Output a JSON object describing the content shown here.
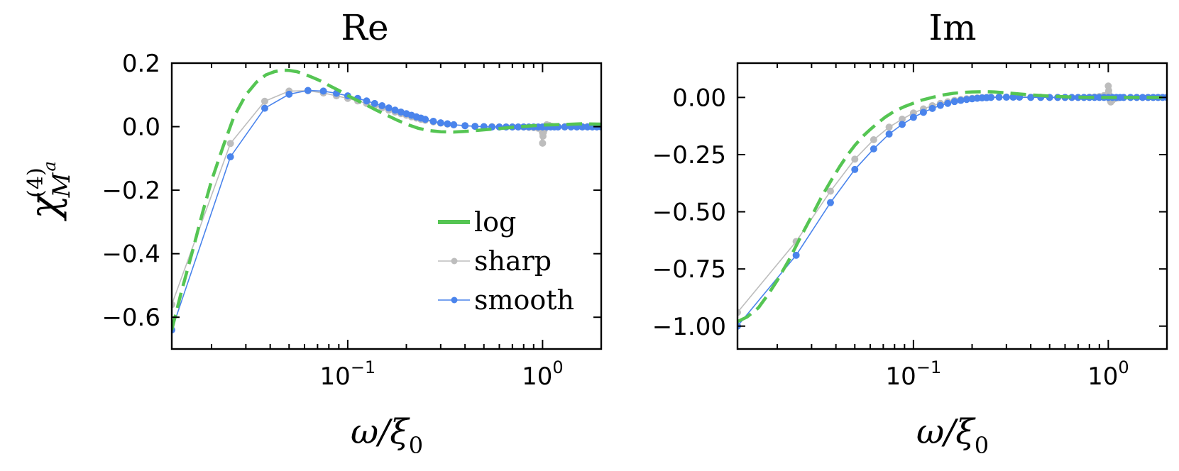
{
  "colors": {
    "log": "#55c553",
    "sharp": "#bdbdbd",
    "smooth": "#4a84ec"
  },
  "y_label": {
    "symbol": "χ",
    "superscript": "(4)",
    "subscript": "M",
    "sub_superscript": "a"
  },
  "chart_data": [
    {
      "type": "line",
      "title": "Re",
      "xlabel": "ω/ξ",
      "xlabel_sub": "0",
      "xscale": "log",
      "xlim": [
        0.0125,
        2.0
      ],
      "ylim": [
        -0.7,
        0.2
      ],
      "xticks": [
        {
          "base": "10",
          "exp": "−1",
          "value": 0.1
        },
        {
          "base": "10",
          "exp": "0",
          "value": 1.0
        }
      ],
      "yticks": [
        {
          "label": "0.2",
          "value": 0.2
        },
        {
          "label": "0.0",
          "value": 0.0
        },
        {
          "label": "−0.2",
          "value": -0.2
        },
        {
          "label": "−0.4",
          "value": -0.4
        },
        {
          "label": "−0.6",
          "value": -0.6
        }
      ],
      "legend": {
        "location": "lower-right",
        "entries": [
          "log",
          "sharp",
          "smooth"
        ]
      },
      "series": [
        {
          "name": "log",
          "style": "dashed",
          "x": [
            0.0125,
            0.014,
            0.016,
            0.018,
            0.02,
            0.023,
            0.026,
            0.03,
            0.034,
            0.038,
            0.042,
            0.046,
            0.05,
            0.055,
            0.06,
            0.066,
            0.072,
            0.08,
            0.09,
            0.1,
            0.11,
            0.125,
            0.14,
            0.16,
            0.18,
            0.2,
            0.23,
            0.26,
            0.3,
            0.35,
            0.4,
            0.5,
            0.6,
            0.7,
            0.85,
            1.0,
            1.3,
            1.6,
            2.0
          ],
          "y": [
            -0.64,
            -0.52,
            -0.39,
            -0.27,
            -0.17,
            -0.06,
            0.03,
            0.1,
            0.14,
            0.163,
            0.173,
            0.178,
            0.177,
            0.173,
            0.165,
            0.155,
            0.145,
            0.13,
            0.114,
            0.098,
            0.085,
            0.068,
            0.052,
            0.035,
            0.02,
            0.008,
            -0.005,
            -0.012,
            -0.016,
            -0.017,
            -0.015,
            -0.01,
            -0.006,
            -0.002,
            0.002,
            0.005,
            0.007,
            0.009,
            0.008
          ]
        },
        {
          "name": "sharp",
          "style": "markers",
          "x": [
            0.0125,
            0.025,
            0.0375,
            0.05,
            0.0625,
            0.075,
            0.0875,
            0.1,
            0.1125,
            0.125,
            0.1375,
            0.15,
            0.1625,
            0.175,
            0.1875,
            0.2,
            0.2125,
            0.225,
            0.2375,
            0.25,
            0.275,
            0.3,
            0.325,
            0.35,
            0.4,
            0.45,
            0.5,
            0.55,
            0.6,
            0.65,
            0.7,
            0.75,
            0.8,
            0.85,
            0.9,
            0.95,
            1.0,
            1.005,
            1.01,
            1.02,
            1.03,
            1.05,
            1.08,
            1.12,
            1.2,
            1.3,
            1.4,
            1.5,
            1.6,
            1.7,
            1.8,
            1.9,
            2.0
          ],
          "y": [
            -0.56,
            -0.053,
            0.08,
            0.112,
            0.113,
            0.106,
            0.097,
            0.089,
            0.081,
            0.073,
            0.066,
            0.059,
            0.052,
            0.046,
            0.041,
            0.036,
            0.031,
            0.027,
            0.023,
            0.02,
            0.015,
            0.011,
            0.008,
            0.006,
            0.003,
            0.001,
            0.0,
            0.0,
            -0.001,
            -0.001,
            -0.001,
            -0.001,
            -0.001,
            -0.002,
            -0.003,
            -0.005,
            -0.052,
            -0.03,
            -0.018,
            -0.01,
            0.0,
            0.006,
            0.004,
            0.001,
            0.0,
            0.0,
            0.0,
            0.0,
            0.0,
            0.0,
            0.0,
            0.0,
            0.0
          ]
        },
        {
          "name": "smooth",
          "style": "markers",
          "x": [
            0.0125,
            0.025,
            0.0375,
            0.05,
            0.0625,
            0.075,
            0.0875,
            0.1,
            0.1125,
            0.125,
            0.1375,
            0.15,
            0.1625,
            0.175,
            0.1875,
            0.2,
            0.2125,
            0.225,
            0.2375,
            0.25,
            0.275,
            0.3,
            0.325,
            0.35,
            0.4,
            0.45,
            0.5,
            0.55,
            0.6,
            0.65,
            0.7,
            0.75,
            0.8,
            0.85,
            0.9,
            0.95,
            1.0,
            1.05,
            1.1,
            1.15,
            1.2,
            1.3,
            1.4,
            1.5,
            1.6,
            1.7,
            1.8,
            1.9,
            2.0
          ],
          "y": [
            -0.64,
            -0.095,
            0.058,
            0.102,
            0.114,
            0.112,
            0.105,
            0.097,
            0.089,
            0.081,
            0.073,
            0.066,
            0.059,
            0.052,
            0.046,
            0.041,
            0.036,
            0.031,
            0.027,
            0.023,
            0.017,
            0.012,
            0.009,
            0.006,
            0.003,
            0.001,
            0.0,
            -0.001,
            -0.001,
            -0.001,
            -0.001,
            -0.001,
            -0.001,
            -0.001,
            -0.001,
            -0.001,
            -0.001,
            -0.001,
            -0.001,
            -0.001,
            -0.001,
            -0.001,
            -0.001,
            -0.001,
            -0.001,
            -0.001,
            -0.001,
            -0.001,
            -0.001
          ]
        }
      ]
    },
    {
      "type": "line",
      "title": "Im",
      "xlabel": "ω/ξ",
      "xlabel_sub": "0",
      "xscale": "log",
      "xlim": [
        0.0125,
        2.0
      ],
      "ylim": [
        -1.1,
        0.15
      ],
      "xticks": [
        {
          "base": "10",
          "exp": "−1",
          "value": 0.1
        },
        {
          "base": "10",
          "exp": "0",
          "value": 1.0
        }
      ],
      "yticks": [
        {
          "label": "0.00",
          "value": 0.0
        },
        {
          "label": "−0.25",
          "value": -0.25
        },
        {
          "label": "−0.50",
          "value": -0.5
        },
        {
          "label": "−0.75",
          "value": -0.75
        },
        {
          "label": "−1.00",
          "value": -1.0
        }
      ],
      "series": [
        {
          "name": "log",
          "style": "dashed",
          "x": [
            0.0125,
            0.014,
            0.016,
            0.018,
            0.02,
            0.023,
            0.026,
            0.03,
            0.034,
            0.038,
            0.042,
            0.046,
            0.05,
            0.055,
            0.06,
            0.066,
            0.072,
            0.08,
            0.09,
            0.1,
            0.11,
            0.125,
            0.14,
            0.16,
            0.18,
            0.2,
            0.23,
            0.26,
            0.3,
            0.35,
            0.4,
            0.5,
            0.6,
            0.7,
            0.85,
            1.0,
            1.3,
            1.6,
            2.0
          ],
          "y": [
            -0.98,
            -0.96,
            -0.92,
            -0.86,
            -0.8,
            -0.71,
            -0.62,
            -0.52,
            -0.43,
            -0.36,
            -0.3,
            -0.25,
            -0.21,
            -0.17,
            -0.14,
            -0.11,
            -0.085,
            -0.06,
            -0.04,
            -0.025,
            -0.012,
            0.0,
            0.01,
            0.018,
            0.022,
            0.024,
            0.025,
            0.024,
            0.02,
            0.015,
            0.011,
            0.006,
            0.003,
            0.001,
            0.0,
            0.0,
            0.0,
            0.0,
            0.0
          ]
        },
        {
          "name": "sharp",
          "style": "markers",
          "x": [
            0.0125,
            0.025,
            0.0375,
            0.05,
            0.0625,
            0.075,
            0.0875,
            0.1,
            0.1125,
            0.125,
            0.1375,
            0.15,
            0.1625,
            0.175,
            0.1875,
            0.2,
            0.2125,
            0.225,
            0.2375,
            0.25,
            0.275,
            0.3,
            0.325,
            0.35,
            0.4,
            0.45,
            0.5,
            0.55,
            0.6,
            0.65,
            0.7,
            0.75,
            0.8,
            0.85,
            0.9,
            0.95,
            1.0,
            1.005,
            1.01,
            1.02,
            1.03,
            1.05,
            1.08,
            1.12,
            1.2,
            1.3,
            1.4,
            1.5,
            1.6,
            1.7,
            1.8,
            1.9,
            2.0
          ],
          "y": [
            -0.94,
            -0.63,
            -0.41,
            -0.27,
            -0.185,
            -0.13,
            -0.095,
            -0.068,
            -0.05,
            -0.036,
            -0.026,
            -0.019,
            -0.013,
            -0.009,
            -0.006,
            -0.004,
            -0.002,
            -0.001,
            0.0,
            0.001,
            0.002,
            0.002,
            0.002,
            0.002,
            0.001,
            0.001,
            0.0,
            0.0,
            0.0,
            0.0,
            0.0,
            0.0,
            0.001,
            0.002,
            0.004,
            0.008,
            0.05,
            0.03,
            0.012,
            -0.01,
            -0.02,
            -0.012,
            -0.005,
            -0.002,
            0.0,
            0.0,
            0.0,
            0.0,
            0.0,
            0.0,
            0.0,
            0.0,
            0.0
          ]
        },
        {
          "name": "smooth",
          "style": "markers",
          "x": [
            0.0125,
            0.025,
            0.0375,
            0.05,
            0.0625,
            0.075,
            0.0875,
            0.1,
            0.1125,
            0.125,
            0.1375,
            0.15,
            0.1625,
            0.175,
            0.1875,
            0.2,
            0.2125,
            0.225,
            0.2375,
            0.25,
            0.275,
            0.3,
            0.325,
            0.35,
            0.4,
            0.45,
            0.5,
            0.55,
            0.6,
            0.65,
            0.7,
            0.75,
            0.8,
            0.85,
            0.9,
            0.95,
            1.0,
            1.05,
            1.1,
            1.15,
            1.2,
            1.3,
            1.4,
            1.5,
            1.6,
            1.7,
            1.8,
            1.9,
            2.0
          ],
          "y": [
            -1.0,
            -0.69,
            -0.46,
            -0.315,
            -0.225,
            -0.16,
            -0.118,
            -0.087,
            -0.065,
            -0.048,
            -0.035,
            -0.026,
            -0.018,
            -0.013,
            -0.009,
            -0.006,
            -0.004,
            -0.002,
            -0.001,
            0.0,
            0.001,
            0.001,
            0.001,
            0.001,
            0.0,
            0.0,
            0.0,
            0.0,
            0.0,
            0.0,
            0.0,
            0.0,
            0.0,
            0.0,
            0.0,
            0.0,
            0.0,
            0.0,
            0.0,
            0.0,
            0.0,
            0.0,
            0.0,
            0.0,
            0.0,
            0.0,
            0.0,
            0.0,
            0.0
          ]
        }
      ]
    }
  ]
}
